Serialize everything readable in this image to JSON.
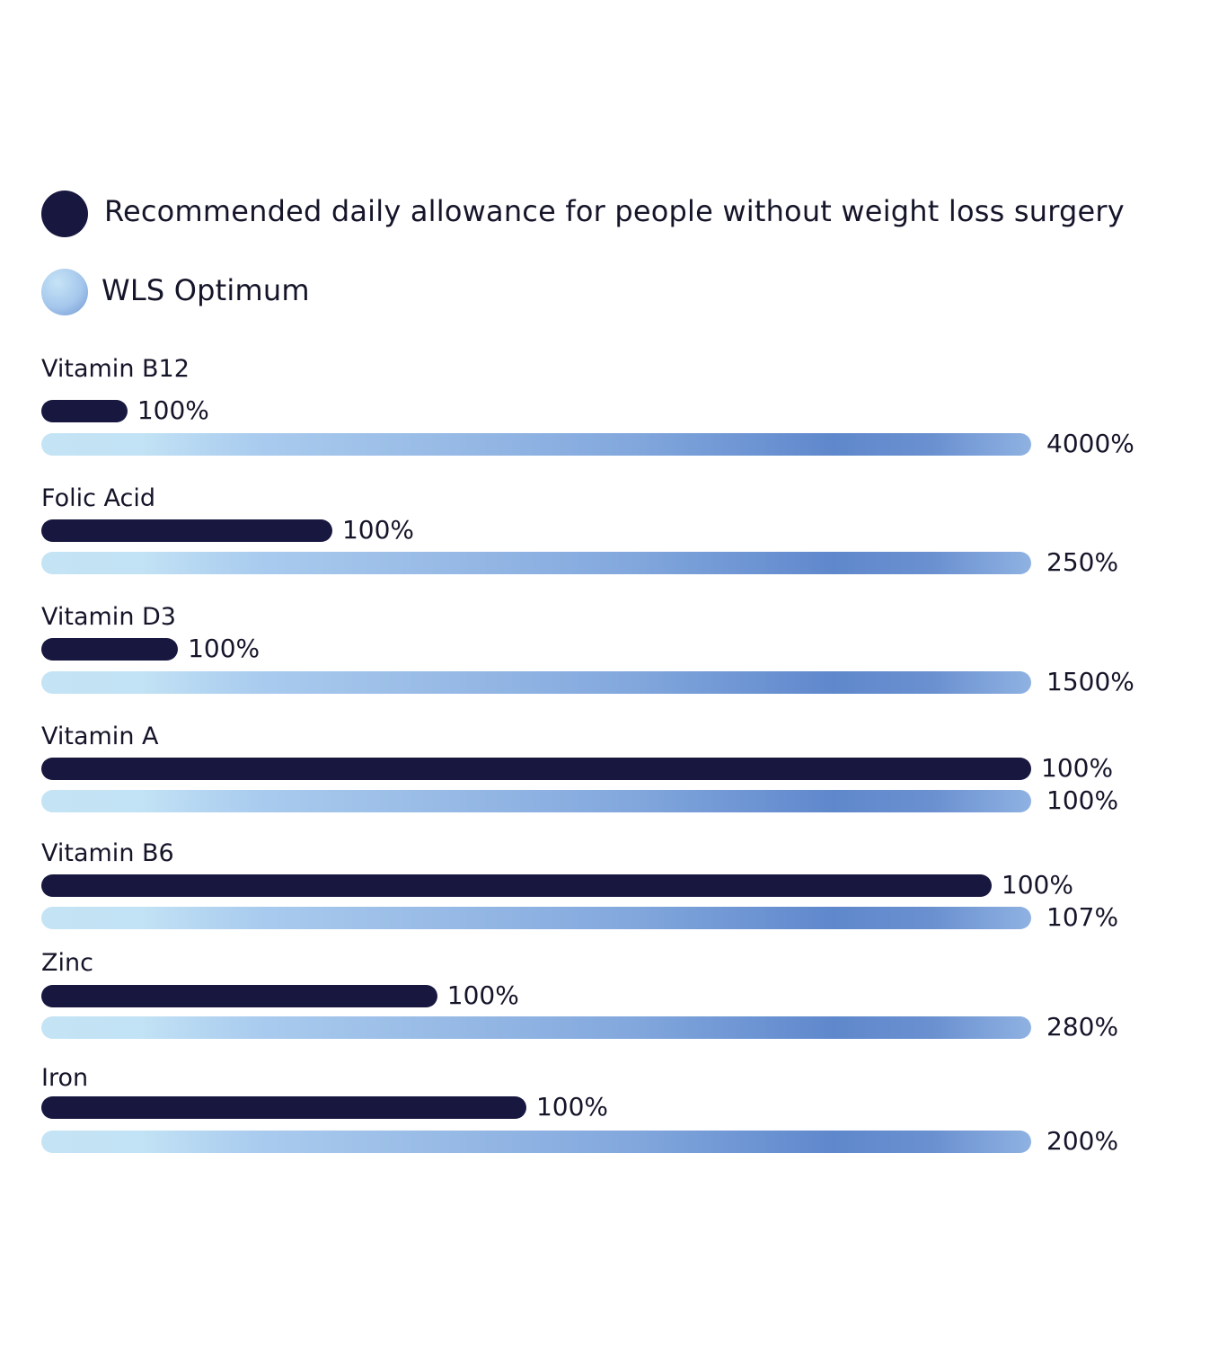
{
  "chart_data": {
    "type": "bar",
    "orientation": "horizontal",
    "legend": [
      {
        "name": "Recommended daily allowance for people without weight loss surgery",
        "color": "#17173f"
      },
      {
        "name": "WLS Optimum",
        "color": "#8fb2e2"
      }
    ],
    "legend_placement": "top-left",
    "categories": [
      "Vitamin B12",
      "Folic Acid",
      "Vitamin D3",
      "Vitamin A",
      "Vitamin B6",
      "Zinc",
      "Iron"
    ],
    "series": [
      {
        "name": "Recommended daily allowance for people without weight loss surgery",
        "values": [
          100,
          100,
          100,
          100,
          100,
          100,
          100
        ],
        "labels": [
          "100%",
          "100%",
          "100%",
          "100%",
          "100%",
          "100%",
          "100%"
        ],
        "bar_fill": [
          0.087,
          0.294,
          0.138,
          1.0,
          0.96,
          0.4,
          0.49
        ]
      },
      {
        "name": "WLS Optimum",
        "values": [
          4000,
          250,
          1500,
          100,
          107,
          280,
          200
        ],
        "labels": [
          "4000%",
          "250%",
          "1500%",
          "100%",
          "107%",
          "280%",
          "200%"
        ],
        "bar_fill": [
          1,
          1,
          1,
          1,
          1,
          1,
          1
        ]
      }
    ],
    "grid": false
  }
}
